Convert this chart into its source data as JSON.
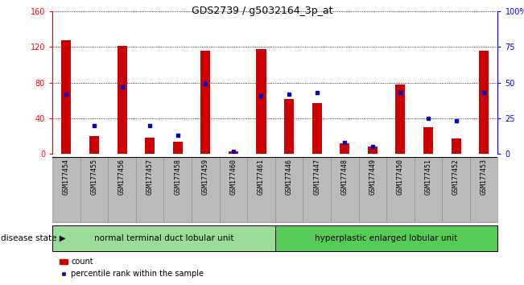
{
  "title": "GDS2739 / g5032164_3p_at",
  "samples": [
    "GSM177454",
    "GSM177455",
    "GSM177456",
    "GSM177457",
    "GSM177458",
    "GSM177459",
    "GSM177460",
    "GSM177461",
    "GSM177446",
    "GSM177447",
    "GSM177448",
    "GSM177449",
    "GSM177450",
    "GSM177451",
    "GSM177452",
    "GSM177453"
  ],
  "counts": [
    128,
    20,
    121,
    18,
    14,
    116,
    3,
    118,
    62,
    57,
    12,
    8,
    78,
    30,
    17,
    116
  ],
  "percentiles": [
    42,
    20,
    47,
    20,
    13,
    49,
    2,
    41,
    42,
    43,
    8,
    5,
    43,
    25,
    23,
    43
  ],
  "group1_label": "normal terminal duct lobular unit",
  "group2_label": "hyperplastic enlarged lobular unit",
  "group1_indices": [
    0,
    1,
    2,
    3,
    4,
    5,
    6,
    7
  ],
  "group2_indices": [
    8,
    9,
    10,
    11,
    12,
    13,
    14,
    15
  ],
  "disease_state_label": "disease state",
  "legend_count_label": "count",
  "legend_percentile_label": "percentile rank within the sample",
  "ylim_left": [
    0,
    160
  ],
  "ylim_right": [
    0,
    100
  ],
  "y_ticks_left": [
    0,
    40,
    80,
    120,
    160
  ],
  "y_ticks_right": [
    0,
    25,
    50,
    75,
    100
  ],
  "y_tick_labels_left": [
    "0",
    "40",
    "80",
    "120",
    "160"
  ],
  "y_tick_labels_right": [
    "0",
    "25",
    "50",
    "75",
    "100%"
  ],
  "bar_color": "#cc0000",
  "dot_color": "#0000cc",
  "group1_bg": "#99dd99",
  "group2_bg": "#55cc55",
  "xticklabel_bg": "#bbbbbb",
  "bar_width": 0.35
}
